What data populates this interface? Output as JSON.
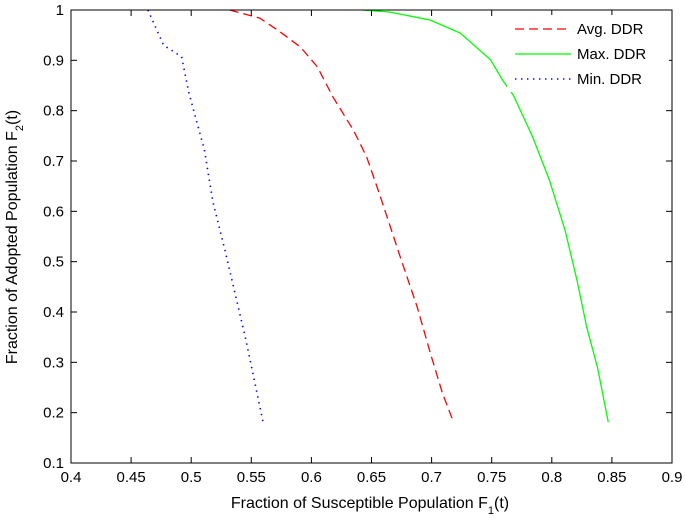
{
  "chart_data": {
    "type": "line",
    "title": "",
    "xlabel": "Fraction of Susceptible Population F1(t)",
    "xlabel_parts": {
      "main": "Fraction of Susceptible Population F",
      "sub": "1",
      "tail": "(t)"
    },
    "ylabel": "Fraction of Adopted Population F2(t)",
    "ylabel_parts": {
      "main": "Fraction of Adopted Population F",
      "sub": "2",
      "tail": "(t)"
    },
    "xlim": [
      0.4,
      0.9
    ],
    "ylim": [
      0.1,
      1.0
    ],
    "xticks": [
      "0.4",
      "0.45",
      "0.5",
      "0.55",
      "0.6",
      "0.65",
      "0.7",
      "0.75",
      "0.8",
      "0.85",
      "0.9"
    ],
    "yticks": [
      "0.1",
      "0.2",
      "0.3",
      "0.4",
      "0.5",
      "0.6",
      "0.7",
      "0.8",
      "0.9",
      "1"
    ],
    "grid": false,
    "legend_position": "upper right",
    "series": [
      {
        "name": "Avg. DDR",
        "color": "#ff0000",
        "style": "dashed",
        "x": [
          0.532,
          0.557,
          0.572,
          0.591,
          0.605,
          0.618,
          0.635,
          0.646,
          0.657,
          0.674,
          0.688,
          0.699,
          0.709,
          0.717
        ],
        "y": [
          1.0,
          0.984,
          0.96,
          0.926,
          0.887,
          0.827,
          0.761,
          0.708,
          0.632,
          0.509,
          0.41,
          0.318,
          0.239,
          0.189
        ]
      },
      {
        "name": "Max. DDR",
        "color": "#00ff00",
        "style": "solid",
        "x": [
          0.642,
          0.665,
          0.699,
          0.724,
          0.749,
          0.759,
          0.768,
          0.784,
          0.798,
          0.811,
          0.821,
          0.829,
          0.838,
          0.847
        ],
        "y": [
          1.0,
          0.996,
          0.98,
          0.954,
          0.901,
          0.861,
          0.831,
          0.748,
          0.662,
          0.563,
          0.463,
          0.37,
          0.29,
          0.181
        ]
      },
      {
        "name": "Min. DDR",
        "color": "#0000ff",
        "style": "dotted",
        "x": [
          0.464,
          0.477,
          0.492,
          0.498,
          0.511,
          0.518,
          0.528,
          0.545,
          0.56
        ],
        "y": [
          1.0,
          0.93,
          0.907,
          0.836,
          0.722,
          0.62,
          0.523,
          0.35,
          0.179
        ]
      }
    ]
  }
}
